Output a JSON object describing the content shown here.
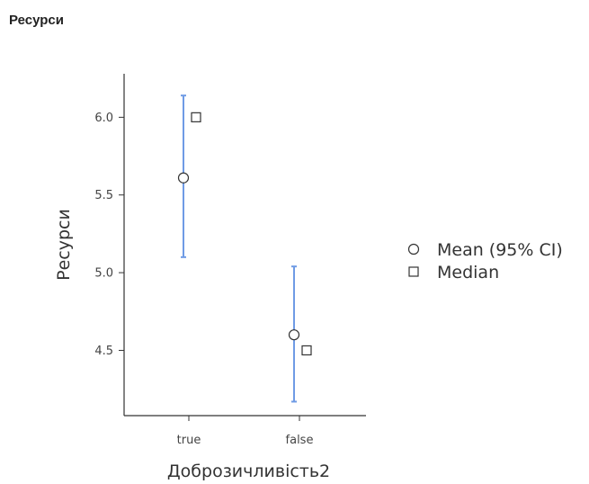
{
  "page": {
    "title": "Ресурси"
  },
  "chart_data": {
    "type": "scatter",
    "title": "",
    "xlabel": "Доброзичливість2",
    "ylabel": "Ресурси",
    "categories": [
      "true",
      "false"
    ],
    "ylim": [
      4.08,
      6.28
    ],
    "yticks": [
      4.5,
      5.0,
      5.5,
      6.0
    ],
    "ytick_labels": [
      "4.5",
      "5.0",
      "5.5",
      "6.0"
    ],
    "series": [
      {
        "name": "Mean (95% CI)",
        "values": [
          5.61,
          4.6
        ],
        "ci_low": [
          5.1,
          4.17
        ],
        "ci_high": [
          6.14,
          5.04
        ]
      },
      {
        "name": "Median",
        "values": [
          6.0,
          4.5
        ]
      }
    ],
    "legend_position": "right",
    "grid": false,
    "colors": {
      "ci": "#6f9be5",
      "marker_stroke": "#333333",
      "axis": "#333333"
    }
  }
}
